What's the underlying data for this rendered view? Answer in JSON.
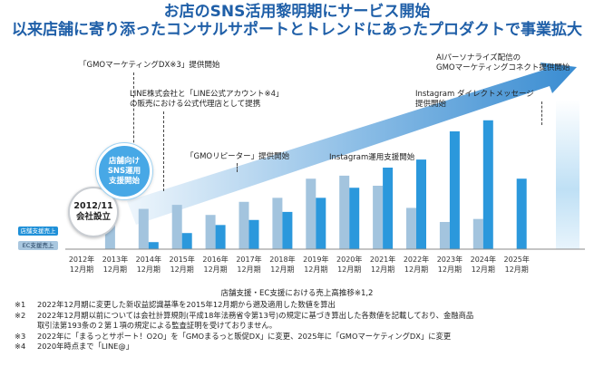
{
  "headline": {
    "line1": "お店のSNS活用黎明期にサービス開始",
    "line2": "以来店舗に寄り添ったコンサルサポートとトレンドにあったプロダクトで事業拡大"
  },
  "colors": {
    "store_bar": "#2b98dc",
    "ec_bar": "#a3c4de",
    "headline": "#1f5fa8",
    "arrow_light": "#eef6fc",
    "arrow_dark": "#2f86cf"
  },
  "legend": {
    "store": "店舗支援売上",
    "ec": "EC支援売上"
  },
  "founded": {
    "year": "2012/11",
    "label": "会社設立"
  },
  "start_bubble": {
    "line1": "店舗向け",
    "line2": "SNS運用",
    "line3": "支援開始"
  },
  "annotations": [
    {
      "lines": [
        "「GMOマーケティングDX※3」提供開始"
      ]
    },
    {
      "lines": [
        "LINE株式会社と「LINE公式アカウント※4」",
        "の販売における公式代理店として提携"
      ]
    },
    {
      "lines": [
        "「GMOリピーター」提供開始"
      ]
    },
    {
      "lines": [
        "Instagram運用支援開始"
      ]
    },
    {
      "lines": [
        "Instagram ダイレクトメッセージ",
        "提供開始"
      ]
    },
    {
      "lines": [
        "AIパーソナライズ配信の",
        "GMOマーケティングコネクト提供開始"
      ]
    }
  ],
  "axis_caption": "店舗支援・EC支援における売上高推移※1,2",
  "chart_data": {
    "type": "bar",
    "categories": [
      "2012年\n12月期",
      "2013年\n12月期",
      "2014年\n12月期",
      "2015年\n12月期",
      "2016年\n12月期",
      "2017年\n12月期",
      "2018年\n12月期",
      "2019年\n12月期",
      "2020年\n12月期",
      "2021年\n12月期",
      "2022年\n12月期",
      "2023年\n12月期",
      "2024年\n12月期",
      "2025年\n12月期"
    ],
    "series": [
      {
        "name": "EC支援売上",
        "values": [
          0,
          38,
          40,
          44,
          34,
          47,
          51,
          70,
          73,
          63,
          41,
          27,
          30,
          0
        ]
      },
      {
        "name": "店舗支援売上",
        "values": [
          0,
          0,
          7,
          16,
          24,
          29,
          37,
          51,
          61,
          81,
          89,
          117,
          128,
          70
        ]
      }
    ],
    "forecast_last": true,
    "title": "",
    "xlabel": "店舗支援・EC支援における売上高推移※1,2",
    "ylabel": "",
    "ylim": [
      0,
      135
    ],
    "grid": false,
    "legend": "left"
  },
  "footnotes": [
    {
      "mark": "※1",
      "lines": [
        "2022年12月期に変更した新収益認識基準を2015年12月期から遡及適用した数値を算出"
      ]
    },
    {
      "mark": "※2",
      "lines": [
        "2022年12月期以前については会社計算規則(平成18年法務省令第13号)の規定に基づき算出した各数値を記載しており、金融商品",
        "取引法第193条の２第１項の規定による監査証明を受けておりません。"
      ]
    },
    {
      "mark": "※3",
      "lines": [
        "2022年に「まるっとサポート！O2O」を「GMOまるっと販促DX」に変更、2025年に「GMOマーケティングDX」に変更"
      ]
    },
    {
      "mark": "※4",
      "lines": [
        "2020年時点まで「LINE@」"
      ]
    }
  ]
}
